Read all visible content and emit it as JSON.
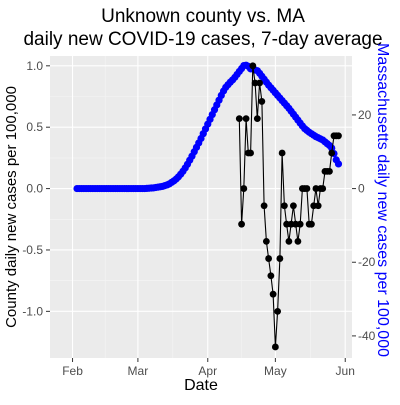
{
  "chart_data": {
    "type": "line",
    "title": "Unknown county vs. MA",
    "subtitle": "daily new COVID-19 cases, 7-day average",
    "xlabel": "Date",
    "ylabel_left": "County daily new cases  per 100,000",
    "ylabel_right": "Massachusetts daily new cases per 100,000",
    "x_ticks": [
      "Feb",
      "Mar",
      "Apr",
      "May",
      "Jun"
    ],
    "x_tick_dates": [
      "2020-02-01",
      "2020-03-01",
      "2020-04-01",
      "2020-05-01",
      "2020-06-01"
    ],
    "x_range": [
      "2020-01-22",
      "2020-06-04"
    ],
    "y_left_ticks": [
      -1.0,
      -0.5,
      0.0,
      0.5,
      1.0
    ],
    "y_left_tick_labels": [
      "-1.0",
      "-0.5",
      "0.0",
      "0.5",
      "1.0"
    ],
    "y_left_range": [
      -1.38,
      1.08
    ],
    "y_right_ticks": [
      -40,
      -20,
      0,
      20
    ],
    "y_right_tick_labels": [
      "-40",
      "-20",
      "0",
      "20"
    ],
    "grid": true,
    "series": [
      {
        "color": "#0000ff",
        "axis": "right",
        "marker": "circle",
        "line": false,
        "x": [
          "2020-02-03",
          "2020-02-04",
          "2020-02-05",
          "2020-02-06",
          "2020-02-07",
          "2020-02-08",
          "2020-02-09",
          "2020-02-10",
          "2020-02-11",
          "2020-02-12",
          "2020-02-13",
          "2020-02-14",
          "2020-02-15",
          "2020-02-16",
          "2020-02-17",
          "2020-02-18",
          "2020-02-19",
          "2020-02-20",
          "2020-02-21",
          "2020-02-22",
          "2020-02-23",
          "2020-02-24",
          "2020-02-25",
          "2020-02-26",
          "2020-02-27",
          "2020-02-28",
          "2020-02-29",
          "2020-03-01",
          "2020-03-02",
          "2020-03-03",
          "2020-03-04",
          "2020-03-05",
          "2020-03-06",
          "2020-03-07",
          "2020-03-08",
          "2020-03-09",
          "2020-03-10",
          "2020-03-11",
          "2020-03-12",
          "2020-03-13",
          "2020-03-14",
          "2020-03-15",
          "2020-03-16",
          "2020-03-17",
          "2020-03-18",
          "2020-03-19",
          "2020-03-20",
          "2020-03-21",
          "2020-03-22",
          "2020-03-23",
          "2020-03-24",
          "2020-03-25",
          "2020-03-26",
          "2020-03-27",
          "2020-03-28",
          "2020-03-29",
          "2020-03-30",
          "2020-03-31",
          "2020-04-01",
          "2020-04-02",
          "2020-04-03",
          "2020-04-04",
          "2020-04-05",
          "2020-04-06",
          "2020-04-07",
          "2020-04-08",
          "2020-04-09",
          "2020-04-10",
          "2020-04-11",
          "2020-04-12",
          "2020-04-13",
          "2020-04-14",
          "2020-04-15",
          "2020-04-16",
          "2020-04-17",
          "2020-04-18",
          "2020-04-19",
          "2020-04-20",
          "2020-04-21",
          "2020-04-22",
          "2020-04-23",
          "2020-04-24",
          "2020-04-25",
          "2020-04-26",
          "2020-04-27",
          "2020-04-28",
          "2020-04-29",
          "2020-04-30",
          "2020-05-01",
          "2020-05-02",
          "2020-05-03",
          "2020-05-04",
          "2020-05-05",
          "2020-05-06",
          "2020-05-07",
          "2020-05-08",
          "2020-05-09",
          "2020-05-10",
          "2020-05-11",
          "2020-05-12",
          "2020-05-13",
          "2020-05-14",
          "2020-05-15",
          "2020-05-16",
          "2020-05-17",
          "2020-05-18",
          "2020-05-19",
          "2020-05-20",
          "2020-05-21",
          "2020-05-22",
          "2020-05-23",
          "2020-05-24",
          "2020-05-25",
          "2020-05-26",
          "2020-05-27",
          "2020-05-28",
          "2020-05-29"
        ],
        "values": [
          0,
          0,
          0,
          0,
          0,
          0,
          0,
          0,
          0,
          0,
          0,
          0,
          0,
          0,
          0,
          0,
          0,
          0,
          0,
          0,
          0,
          0,
          0,
          0,
          0,
          0,
          0,
          0,
          0,
          0,
          0,
          0.05,
          0.1,
          0.15,
          0.2,
          0.3,
          0.4,
          0.5,
          0.6,
          0.8,
          1.0,
          1.3,
          1.7,
          2.1,
          2.6,
          3.2,
          3.9,
          4.7,
          5.6,
          6.6,
          7.7,
          8.8,
          10.0,
          11.2,
          12.4,
          13.6,
          14.9,
          16.2,
          17.5,
          18.8,
          20.1,
          21.4,
          22.7,
          24.0,
          25.3,
          26.5,
          27.5,
          28.2,
          28.9,
          29.5,
          30.2,
          31.0,
          31.8,
          32.6,
          33.4,
          33.5,
          33.2,
          32.5,
          32.5,
          32.2,
          32.0,
          31.3,
          30.5,
          29.7,
          28.9,
          28.1,
          27.4,
          26.7,
          26.0,
          25.3,
          24.6,
          23.9,
          23.2,
          22.5,
          21.8,
          21.0,
          20.2,
          19.4,
          18.6,
          17.8,
          17.0,
          16.3,
          15.8,
          15.3,
          14.9,
          14.5,
          14.1,
          13.8,
          13.5,
          13.2,
          12.7,
          12.2,
          11.7,
          11.0,
          9.5,
          7.8,
          6.7
        ]
      },
      {
        "color": "#000000",
        "axis": "left",
        "marker": "circle",
        "line": true,
        "x": [
          "2020-04-15",
          "2020-04-16",
          "2020-04-17",
          "2020-04-18",
          "2020-04-19",
          "2020-04-20",
          "2020-04-21",
          "2020-04-22",
          "2020-04-23",
          "2020-04-24",
          "2020-04-25",
          "2020-04-26",
          "2020-04-27",
          "2020-04-28",
          "2020-04-29",
          "2020-04-30",
          "2020-05-01",
          "2020-05-02",
          "2020-05-03",
          "2020-05-04",
          "2020-05-05",
          "2020-05-06",
          "2020-05-07",
          "2020-05-08",
          "2020-05-09",
          "2020-05-10",
          "2020-05-11",
          "2020-05-12",
          "2020-05-13",
          "2020-05-14",
          "2020-05-15",
          "2020-05-16",
          "2020-05-17",
          "2020-05-18",
          "2020-05-19",
          "2020-05-20",
          "2020-05-21",
          "2020-05-22",
          "2020-05-23",
          "2020-05-24",
          "2020-05-25",
          "2020-05-26",
          "2020-05-27",
          "2020-05-28",
          "2020-05-29"
        ],
        "values": [
          0.57,
          -0.29,
          0.0,
          0.57,
          0.29,
          0.29,
          1.0,
          0.86,
          0.57,
          0.86,
          0.71,
          -0.14,
          -0.43,
          -0.57,
          -0.71,
          -0.86,
          -1.29,
          -1.0,
          -0.57,
          0.29,
          -0.14,
          -0.29,
          -0.43,
          -0.29,
          -0.14,
          -0.29,
          -0.43,
          -0.29,
          0.0,
          0.0,
          0.0,
          -0.29,
          -0.29,
          -0.14,
          0.0,
          -0.14,
          0.0,
          0.0,
          0.14,
          0.14,
          0.14,
          0.29,
          0.43,
          0.43,
          0.43
        ]
      }
    ]
  }
}
